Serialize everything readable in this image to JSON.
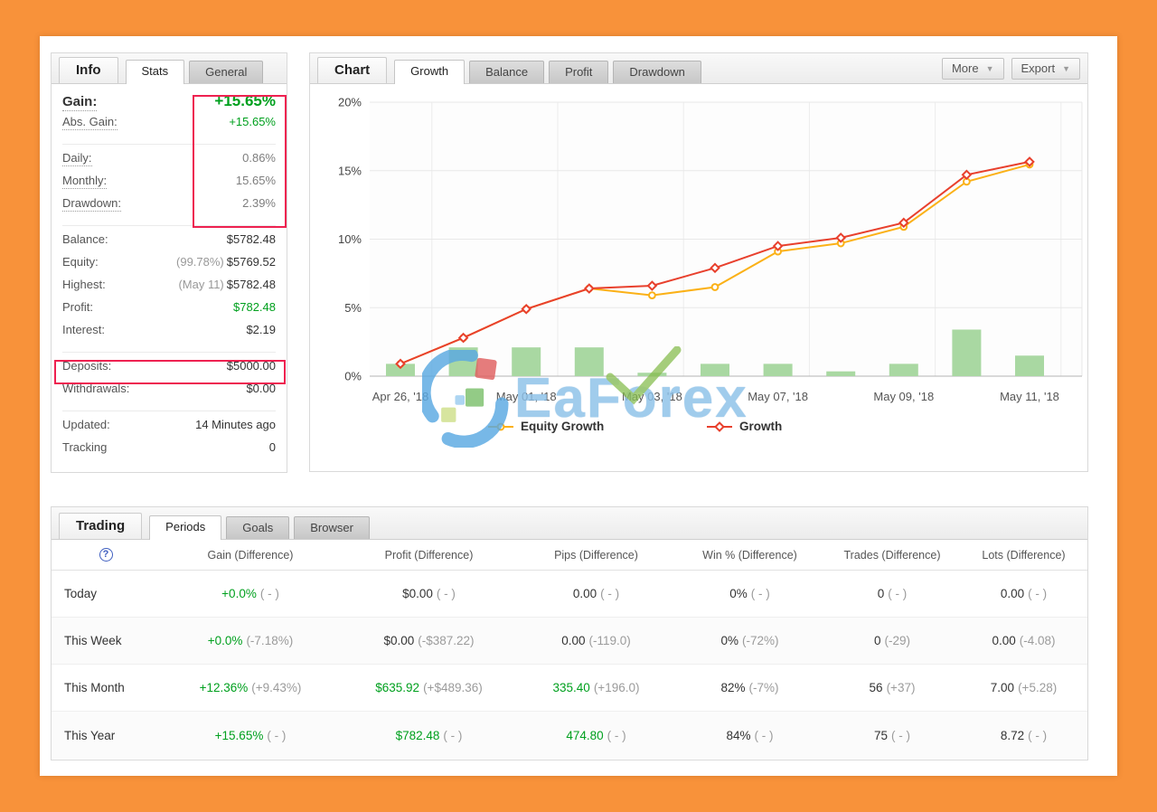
{
  "colors": {
    "page_border": "#f8923a",
    "green_text": "#00a01e",
    "highlight_red": "#ee2150",
    "bar_green": "#a9d8a2",
    "line_red": "#e8402d",
    "line_yellow": "#fbb117"
  },
  "info": {
    "title": "Info",
    "tabs": [
      {
        "label": "Stats",
        "active": true
      },
      {
        "label": "General",
        "active": false
      }
    ],
    "groups": [
      {
        "rows": [
          {
            "label": "Gain:",
            "value": "+15.65%",
            "style": "green-big",
            "dotted": true,
            "big_label": true
          },
          {
            "label": "Abs. Gain:",
            "value": "+15.65%",
            "style": "green",
            "dotted": true
          }
        ]
      },
      {
        "rows": [
          {
            "label": "Daily:",
            "value": "0.86%",
            "style": "gray",
            "dotted": true
          },
          {
            "label": "Monthly:",
            "value": "15.65%",
            "style": "gray",
            "dotted": true
          },
          {
            "label": "Drawdown:",
            "value": "2.39%",
            "style": "gray",
            "dotted": true
          }
        ]
      },
      {
        "rows": [
          {
            "label": "Balance:",
            "value": "$5782.48",
            "style": "dark"
          },
          {
            "label": "Equity:",
            "prefix": "(99.78%)",
            "value": "$5769.52",
            "style": "dark"
          },
          {
            "label": "Highest:",
            "prefix": "(May 11)",
            "value": "$5782.48",
            "style": "dark"
          },
          {
            "label": "Profit:",
            "value": "$782.48",
            "style": "green"
          },
          {
            "label": "Interest:",
            "value": "$2.19",
            "style": "dark"
          }
        ]
      },
      {
        "rows": [
          {
            "label": "Deposits:",
            "value": "$5000.00",
            "style": "dark"
          },
          {
            "label": "Withdrawals:",
            "value": "$0.00",
            "style": "dark"
          }
        ]
      },
      {
        "rows": [
          {
            "label": "Updated:",
            "value": "14 Minutes ago",
            "style": "dark"
          },
          {
            "label": "Tracking",
            "value": "0",
            "style": "dark"
          }
        ]
      }
    ]
  },
  "chart": {
    "title": "Chart",
    "tabs": [
      {
        "label": "Growth",
        "active": true
      },
      {
        "label": "Balance",
        "active": false
      },
      {
        "label": "Profit",
        "active": false
      },
      {
        "label": "Drawdown",
        "active": false
      }
    ],
    "buttons": [
      {
        "label": "More"
      },
      {
        "label": "Export"
      }
    ]
  },
  "chart_data": {
    "type": "line",
    "title": "Growth",
    "ylim": [
      0,
      20
    ],
    "y_ticks": [
      {
        "label": "20%",
        "value": 20
      },
      {
        "label": "15%",
        "value": 15
      },
      {
        "label": "10%",
        "value": 10
      },
      {
        "label": "5%",
        "value": 5
      },
      {
        "label": "0%",
        "value": 0
      }
    ],
    "x_labels": [
      "Apr 26, '18",
      "May 01, '18",
      "May 03, '18",
      "May 07, '18",
      "May 09, '18",
      "May 11, '18"
    ],
    "x_label_point_indices": [
      0,
      2,
      4,
      6,
      8,
      10
    ],
    "n_points": 11,
    "series": [
      {
        "name": "Equity Growth",
        "kind": "line",
        "marker": "circle",
        "color": "#fbb117",
        "values": [
          0.9,
          2.8,
          4.9,
          6.4,
          5.9,
          6.5,
          9.1,
          9.7,
          10.9,
          14.2,
          15.45
        ]
      },
      {
        "name": "Growth",
        "kind": "line",
        "marker": "diamond",
        "color": "#e8402d",
        "values": [
          0.9,
          2.8,
          4.9,
          6.4,
          6.6,
          7.9,
          9.5,
          10.1,
          11.2,
          14.7,
          15.65
        ]
      },
      {
        "name": "",
        "kind": "bar",
        "color": "#a9d8a2",
        "values": [
          0.9,
          2.1,
          2.1,
          2.1,
          0.25,
          0.9,
          0.9,
          0.35,
          0.9,
          3.4,
          1.5
        ]
      }
    ],
    "legend": [
      {
        "label": "Equity Growth",
        "marker": "circle",
        "color": "#fbb117"
      },
      {
        "label": "Growth",
        "marker": "diamond",
        "color": "#e8402d"
      }
    ],
    "grid": true,
    "legend_position": "bottom"
  },
  "watermark": {
    "text": "EaForex"
  },
  "trading": {
    "title": "Trading",
    "tabs": [
      {
        "label": "Periods",
        "active": true
      },
      {
        "label": "Goals",
        "active": false
      },
      {
        "label": "Browser",
        "active": false
      }
    ],
    "help_icon": "?",
    "columns": [
      "Gain (Difference)",
      "Profit (Difference)",
      "Pips (Difference)",
      "Win % (Difference)",
      "Trades (Difference)",
      "Lots (Difference)"
    ],
    "rows": [
      {
        "period": "Today",
        "cells": [
          {
            "main": "+0.0%",
            "paren": "( - )",
            "green": true
          },
          {
            "main": "$0.00",
            "paren": "( - )"
          },
          {
            "main": "0.00",
            "paren": "( - )"
          },
          {
            "main": "0%",
            "paren": "( - )"
          },
          {
            "main": "0",
            "paren": "( - )"
          },
          {
            "main": "0.00",
            "paren": "( - )"
          }
        ]
      },
      {
        "period": "This Week",
        "cells": [
          {
            "main": "+0.0%",
            "paren": "(-7.18%)",
            "green": true
          },
          {
            "main": "$0.00",
            "paren": "(-$387.22)"
          },
          {
            "main": "0.00",
            "paren": "(-119.0)"
          },
          {
            "main": "0%",
            "paren": "(-72%)"
          },
          {
            "main": "0",
            "paren": "(-29)"
          },
          {
            "main": "0.00",
            "paren": "(-4.08)"
          }
        ]
      },
      {
        "period": "This Month",
        "cells": [
          {
            "main": "+12.36%",
            "paren": "(+9.43%)",
            "green": true
          },
          {
            "main": "$635.92",
            "paren": "(+$489.36)",
            "green": true
          },
          {
            "main": "335.40",
            "paren": "(+196.0)",
            "green": true
          },
          {
            "main": "82%",
            "paren": "(-7%)"
          },
          {
            "main": "56",
            "paren": "(+37)"
          },
          {
            "main": "7.00",
            "paren": "(+5.28)"
          }
        ]
      },
      {
        "period": "This Year",
        "cells": [
          {
            "main": "+15.65%",
            "paren": "( - )",
            "green": true
          },
          {
            "main": "$782.48",
            "paren": "( - )",
            "green": true
          },
          {
            "main": "474.80",
            "paren": "( - )",
            "green": true
          },
          {
            "main": "84%",
            "paren": "( - )"
          },
          {
            "main": "75",
            "paren": "( - )"
          },
          {
            "main": "8.72",
            "paren": "( - )"
          }
        ]
      }
    ]
  }
}
